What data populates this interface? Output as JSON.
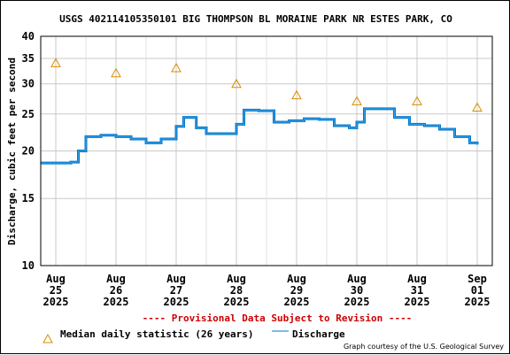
{
  "chart_data": {
    "type": "line",
    "title": "USGS 402114105350101 BIG THOMPSON BL MORAINE PARK NR ESTES PARK, CO",
    "ylabel": "Discharge, cubic feet per second",
    "yscale": "log",
    "ylim": [
      10,
      40
    ],
    "yticks": [
      "10",
      "15",
      "20",
      "25",
      "30",
      "35",
      "40"
    ],
    "xlim": [
      "2025-08-24T18:00",
      "2025-09-01T06:00"
    ],
    "xticks": [
      {
        "date": "2025-08-25",
        "label": [
          "Aug",
          "25",
          "2025"
        ]
      },
      {
        "date": "2025-08-26",
        "label": [
          "Aug",
          "26",
          "2025"
        ]
      },
      {
        "date": "2025-08-27",
        "label": [
          "Aug",
          "27",
          "2025"
        ]
      },
      {
        "date": "2025-08-28",
        "label": [
          "Aug",
          "28",
          "2025"
        ]
      },
      {
        "date": "2025-08-29",
        "label": [
          "Aug",
          "29",
          "2025"
        ]
      },
      {
        "date": "2025-08-30",
        "label": [
          "Aug",
          "30",
          "2025"
        ]
      },
      {
        "date": "2025-08-31",
        "label": [
          "Aug",
          "31",
          "2025"
        ]
      },
      {
        "date": "2025-09-01",
        "label": [
          "Sep",
          "01",
          "2025"
        ]
      }
    ],
    "grid": true,
    "series": [
      {
        "name": "Discharge",
        "color": "#0077cc",
        "points": [
          [
            "2025-08-24T18:00",
            18.6
          ],
          [
            "2025-08-25T06:00",
            18.7
          ],
          [
            "2025-08-25T09:00",
            20.0
          ],
          [
            "2025-08-25T12:00",
            21.8
          ],
          [
            "2025-08-25T18:00",
            22.0
          ],
          [
            "2025-08-26T00:00",
            21.8
          ],
          [
            "2025-08-26T06:00",
            21.5
          ],
          [
            "2025-08-26T12:00",
            21.0
          ],
          [
            "2025-08-26T18:00",
            21.5
          ],
          [
            "2025-08-27T00:00",
            23.2
          ],
          [
            "2025-08-27T03:00",
            24.5
          ],
          [
            "2025-08-27T08:00",
            23.0
          ],
          [
            "2025-08-27T12:00",
            22.2
          ],
          [
            "2025-08-27T18:00",
            22.2
          ],
          [
            "2025-08-28T00:00",
            23.5
          ],
          [
            "2025-08-28T03:00",
            25.6
          ],
          [
            "2025-08-28T09:00",
            25.5
          ],
          [
            "2025-08-28T15:00",
            23.8
          ],
          [
            "2025-08-28T21:00",
            24.0
          ],
          [
            "2025-08-29T03:00",
            24.3
          ],
          [
            "2025-08-29T09:00",
            24.2
          ],
          [
            "2025-08-29T15:00",
            23.3
          ],
          [
            "2025-08-29T21:00",
            23.0
          ],
          [
            "2025-08-30T00:00",
            23.8
          ],
          [
            "2025-08-30T03:00",
            25.8
          ],
          [
            "2025-08-30T09:00",
            25.8
          ],
          [
            "2025-08-30T15:00",
            24.5
          ],
          [
            "2025-08-30T21:00",
            23.5
          ],
          [
            "2025-08-31T03:00",
            23.3
          ],
          [
            "2025-08-31T09:00",
            22.8
          ],
          [
            "2025-08-31T15:00",
            21.8
          ],
          [
            "2025-08-31T21:00",
            21.0
          ],
          [
            "2025-09-01T00:00",
            20.8
          ]
        ]
      },
      {
        "name": "Median daily statistic (26 years)",
        "color": "#d98c00",
        "marker": "triangle",
        "points": [
          [
            "2025-08-25T00:00",
            34
          ],
          [
            "2025-08-26T00:00",
            32
          ],
          [
            "2025-08-27T00:00",
            33
          ],
          [
            "2025-08-28T00:00",
            30
          ],
          [
            "2025-08-29T00:00",
            28
          ],
          [
            "2025-08-30T00:00",
            27
          ],
          [
            "2025-08-31T00:00",
            27
          ],
          [
            "2025-09-01T00:00",
            26
          ]
        ]
      }
    ],
    "provisional_note": "---- Provisional Data Subject to Revision ----",
    "legend": {
      "position": "bottom",
      "items": [
        {
          "label": "Median daily statistic (26 years)",
          "marker": "triangle",
          "color": "#d98c00"
        },
        {
          "label": "Discharge",
          "marker": "line",
          "color": "#0077cc"
        }
      ]
    },
    "credit": "Graph courtesy of the U.S. Geological Survey"
  }
}
